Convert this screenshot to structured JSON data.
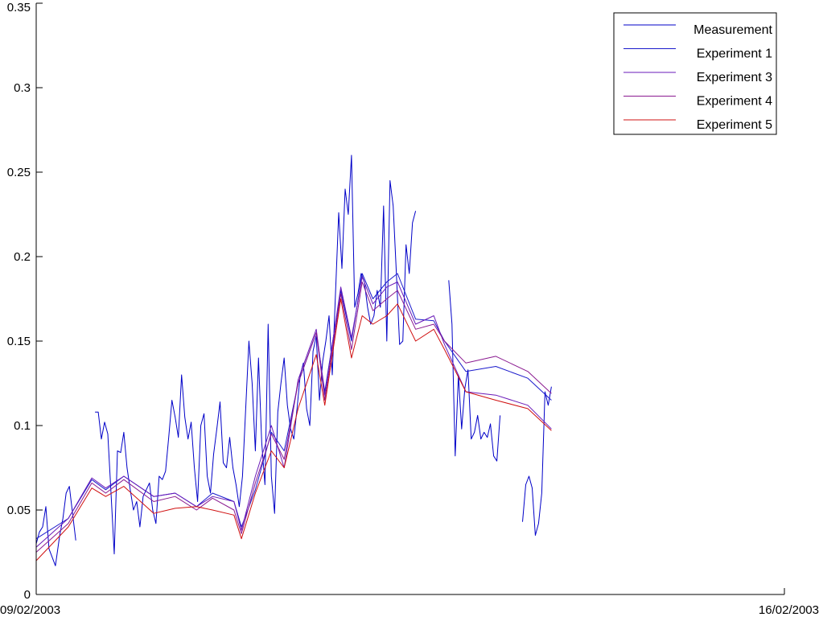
{
  "chart_data": {
    "type": "line",
    "title": "",
    "xlabel": "",
    "ylabel": "",
    "x_tick_labels": [
      "09/02/2003",
      "16/02/2003"
    ],
    "xlim": [
      0,
      7
    ],
    "ylim": [
      0,
      0.35
    ],
    "y_ticks": [
      0,
      0.05,
      0.1,
      0.15,
      0.2,
      0.25,
      0.3,
      0.35
    ],
    "y_tick_labels": [
      "0",
      "0.05",
      "0.1",
      "0.15",
      "0.2",
      "0.25",
      "0.3",
      "0.35"
    ],
    "grid": false,
    "legend_position": "top-right",
    "series": [
      {
        "name": "Measurement",
        "color": "#0000c8",
        "points": [
          [
            0.0,
            0.03
          ],
          [
            0.03,
            0.037
          ],
          [
            0.06,
            0.04
          ],
          [
            0.09,
            0.052
          ],
          [
            0.12,
            0.027
          ],
          [
            0.15,
            0.022
          ],
          [
            0.18,
            0.017
          ],
          [
            0.22,
            0.035
          ],
          [
            0.25,
            0.045
          ],
          [
            0.28,
            0.06
          ],
          [
            0.31,
            0.064
          ],
          [
            0.34,
            0.048
          ],
          [
            0.37,
            0.032
          ],
          null,
          [
            0.55,
            0.108
          ],
          [
            0.58,
            0.108
          ],
          [
            0.61,
            0.092
          ],
          [
            0.64,
            0.102
          ],
          [
            0.67,
            0.095
          ],
          [
            0.7,
            0.06
          ],
          [
            0.73,
            0.024
          ],
          [
            0.76,
            0.085
          ],
          [
            0.79,
            0.084
          ],
          [
            0.82,
            0.096
          ],
          [
            0.85,
            0.075
          ],
          [
            0.88,
            0.062
          ],
          [
            0.91,
            0.05
          ],
          [
            0.94,
            0.055
          ],
          [
            0.97,
            0.04
          ],
          [
            1.0,
            0.058
          ],
          [
            1.03,
            0.062
          ],
          [
            1.06,
            0.066
          ],
          [
            1.09,
            0.05
          ],
          [
            1.12,
            0.042
          ],
          [
            1.15,
            0.07
          ],
          [
            1.18,
            0.068
          ],
          [
            1.21,
            0.073
          ],
          [
            1.24,
            0.093
          ],
          [
            1.27,
            0.115
          ],
          [
            1.3,
            0.105
          ],
          [
            1.33,
            0.093
          ],
          [
            1.36,
            0.13
          ],
          [
            1.39,
            0.105
          ],
          [
            1.42,
            0.092
          ],
          [
            1.45,
            0.102
          ],
          [
            1.48,
            0.075
          ],
          [
            1.51,
            0.055
          ],
          [
            1.54,
            0.1
          ],
          [
            1.57,
            0.107
          ],
          [
            1.6,
            0.07
          ],
          [
            1.63,
            0.06
          ],
          [
            1.66,
            0.083
          ],
          [
            1.69,
            0.098
          ],
          [
            1.72,
            0.114
          ],
          [
            1.75,
            0.078
          ],
          [
            1.78,
            0.075
          ],
          [
            1.81,
            0.093
          ],
          [
            1.84,
            0.075
          ],
          [
            1.87,
            0.065
          ],
          [
            1.9,
            0.052
          ],
          [
            1.93,
            0.07
          ],
          [
            1.96,
            0.11
          ],
          [
            1.99,
            0.15
          ],
          [
            2.02,
            0.125
          ],
          [
            2.05,
            0.085
          ],
          [
            2.08,
            0.14
          ],
          [
            2.11,
            0.09
          ],
          [
            2.14,
            0.065
          ],
          [
            2.17,
            0.16
          ],
          [
            2.2,
            0.07
          ],
          [
            2.23,
            0.048
          ],
          [
            2.26,
            0.108
          ],
          [
            2.29,
            0.125
          ],
          [
            2.32,
            0.14
          ],
          [
            2.35,
            0.112
          ],
          [
            2.38,
            0.098
          ],
          [
            2.41,
            0.092
          ],
          [
            2.44,
            0.11
          ],
          [
            2.47,
            0.13
          ],
          [
            2.5,
            0.137
          ],
          [
            2.53,
            0.11
          ],
          [
            2.56,
            0.1
          ],
          [
            2.59,
            0.144
          ],
          [
            2.62,
            0.153
          ],
          [
            2.65,
            0.115
          ],
          [
            2.68,
            0.138
          ],
          [
            2.71,
            0.15
          ],
          [
            2.74,
            0.165
          ],
          [
            2.77,
            0.13
          ],
          [
            2.8,
            0.178
          ],
          [
            2.83,
            0.226
          ],
          [
            2.86,
            0.193
          ],
          [
            2.89,
            0.24
          ],
          [
            2.92,
            0.225
          ],
          [
            2.95,
            0.26
          ],
          [
            2.98,
            0.17
          ],
          [
            3.01,
            0.178
          ],
          [
            3.04,
            0.19
          ],
          [
            3.07,
            0.185
          ],
          [
            3.1,
            0.17
          ],
          [
            3.13,
            0.16
          ],
          [
            3.16,
            0.165
          ],
          [
            3.19,
            0.18
          ],
          [
            3.22,
            0.17
          ],
          [
            3.25,
            0.23
          ],
          [
            3.28,
            0.15
          ],
          [
            3.31,
            0.245
          ],
          [
            3.34,
            0.23
          ],
          [
            3.37,
            0.19
          ],
          [
            3.4,
            0.148
          ],
          [
            3.43,
            0.15
          ],
          [
            3.46,
            0.207
          ],
          [
            3.49,
            0.19
          ],
          [
            3.52,
            0.22
          ],
          [
            3.55,
            0.227
          ],
          null,
          [
            3.86,
            0.186
          ],
          [
            3.89,
            0.16
          ],
          [
            3.92,
            0.082
          ],
          [
            3.95,
            0.13
          ],
          [
            3.98,
            0.098
          ],
          [
            4.01,
            0.122
          ],
          [
            4.04,
            0.133
          ],
          [
            4.07,
            0.092
          ],
          [
            4.1,
            0.096
          ],
          [
            4.13,
            0.106
          ],
          [
            4.16,
            0.092
          ],
          [
            4.19,
            0.096
          ],
          [
            4.22,
            0.093
          ],
          [
            4.25,
            0.101
          ],
          [
            4.28,
            0.082
          ],
          [
            4.31,
            0.079
          ],
          [
            4.34,
            0.106
          ],
          null,
          [
            4.55,
            0.043
          ],
          [
            4.58,
            0.065
          ],
          [
            4.61,
            0.07
          ],
          [
            4.64,
            0.063
          ],
          [
            4.67,
            0.035
          ],
          [
            4.7,
            0.042
          ],
          [
            4.73,
            0.06
          ],
          [
            4.76,
            0.12
          ],
          [
            4.79,
            0.112
          ],
          [
            4.82,
            0.123
          ]
        ]
      },
      {
        "name": "Experiment 1",
        "color": "#1a1acc",
        "points": [
          [
            0.0,
            0.033
          ],
          [
            0.3,
            0.045
          ],
          [
            0.52,
            0.068
          ],
          [
            0.65,
            0.062
          ],
          [
            0.82,
            0.07
          ],
          [
            1.1,
            0.058
          ],
          [
            1.3,
            0.06
          ],
          [
            1.5,
            0.052
          ],
          [
            1.65,
            0.06
          ],
          [
            1.85,
            0.055
          ],
          [
            1.92,
            0.04
          ],
          [
            2.05,
            0.062
          ],
          [
            2.2,
            0.096
          ],
          [
            2.32,
            0.085
          ],
          [
            2.45,
            0.125
          ],
          [
            2.62,
            0.155
          ],
          [
            2.7,
            0.12
          ],
          [
            2.85,
            0.18
          ],
          [
            2.95,
            0.15
          ],
          [
            3.05,
            0.19
          ],
          [
            3.15,
            0.175
          ],
          [
            3.28,
            0.185
          ],
          [
            3.38,
            0.19
          ],
          [
            3.55,
            0.163
          ],
          [
            3.72,
            0.162
          ],
          [
            3.82,
            0.15
          ],
          [
            4.02,
            0.132
          ],
          [
            4.3,
            0.135
          ],
          [
            4.6,
            0.128
          ],
          [
            4.82,
            0.115
          ]
        ]
      },
      {
        "name": "Experiment 3",
        "color": "#6a1ab8",
        "points": [
          [
            0.0,
            0.028
          ],
          [
            0.3,
            0.045
          ],
          [
            0.52,
            0.069
          ],
          [
            0.65,
            0.063
          ],
          [
            0.82,
            0.07
          ],
          [
            1.1,
            0.058
          ],
          [
            1.3,
            0.06
          ],
          [
            1.5,
            0.052
          ],
          [
            1.65,
            0.058
          ],
          [
            1.85,
            0.055
          ],
          [
            1.92,
            0.038
          ],
          [
            2.05,
            0.07
          ],
          [
            2.2,
            0.1
          ],
          [
            2.32,
            0.075
          ],
          [
            2.45,
            0.127
          ],
          [
            2.62,
            0.157
          ],
          [
            2.7,
            0.118
          ],
          [
            2.85,
            0.182
          ],
          [
            2.95,
            0.152
          ],
          [
            3.05,
            0.188
          ],
          [
            3.15,
            0.172
          ],
          [
            3.28,
            0.182
          ],
          [
            3.38,
            0.185
          ],
          [
            3.55,
            0.16
          ],
          [
            3.72,
            0.165
          ],
          [
            3.82,
            0.148
          ],
          [
            4.02,
            0.12
          ],
          [
            4.3,
            0.118
          ],
          [
            4.6,
            0.112
          ],
          [
            4.82,
            0.098
          ]
        ]
      },
      {
        "name": "Experiment 4",
        "color": "#8a1a90",
        "points": [
          [
            0.0,
            0.025
          ],
          [
            0.3,
            0.042
          ],
          [
            0.52,
            0.066
          ],
          [
            0.65,
            0.06
          ],
          [
            0.82,
            0.068
          ],
          [
            1.1,
            0.055
          ],
          [
            1.3,
            0.058
          ],
          [
            1.5,
            0.05
          ],
          [
            1.65,
            0.057
          ],
          [
            1.85,
            0.05
          ],
          [
            1.92,
            0.036
          ],
          [
            2.05,
            0.066
          ],
          [
            2.2,
            0.095
          ],
          [
            2.32,
            0.08
          ],
          [
            2.45,
            0.125
          ],
          [
            2.62,
            0.155
          ],
          [
            2.7,
            0.115
          ],
          [
            2.85,
            0.178
          ],
          [
            2.95,
            0.145
          ],
          [
            3.05,
            0.185
          ],
          [
            3.15,
            0.168
          ],
          [
            3.28,
            0.175
          ],
          [
            3.38,
            0.18
          ],
          [
            3.55,
            0.157
          ],
          [
            3.72,
            0.16
          ],
          [
            3.82,
            0.15
          ],
          [
            4.02,
            0.137
          ],
          [
            4.3,
            0.141
          ],
          [
            4.6,
            0.132
          ],
          [
            4.82,
            0.119
          ]
        ]
      },
      {
        "name": "Experiment 5",
        "color": "#d01010",
        "points": [
          [
            0.0,
            0.02
          ],
          [
            0.3,
            0.04
          ],
          [
            0.52,
            0.063
          ],
          [
            0.65,
            0.058
          ],
          [
            0.82,
            0.064
          ],
          [
            1.1,
            0.048
          ],
          [
            1.3,
            0.051
          ],
          [
            1.5,
            0.052
          ],
          [
            1.65,
            0.05
          ],
          [
            1.85,
            0.047
          ],
          [
            1.92,
            0.033
          ],
          [
            2.05,
            0.06
          ],
          [
            2.2,
            0.085
          ],
          [
            2.32,
            0.075
          ],
          [
            2.45,
            0.11
          ],
          [
            2.62,
            0.142
          ],
          [
            2.7,
            0.112
          ],
          [
            2.85,
            0.175
          ],
          [
            2.95,
            0.14
          ],
          [
            3.05,
            0.165
          ],
          [
            3.15,
            0.16
          ],
          [
            3.28,
            0.165
          ],
          [
            3.38,
            0.172
          ],
          [
            3.55,
            0.15
          ],
          [
            3.72,
            0.157
          ],
          [
            3.82,
            0.145
          ],
          [
            4.02,
            0.12
          ],
          [
            4.3,
            0.115
          ],
          [
            4.6,
            0.11
          ],
          [
            4.82,
            0.097
          ]
        ]
      }
    ]
  }
}
